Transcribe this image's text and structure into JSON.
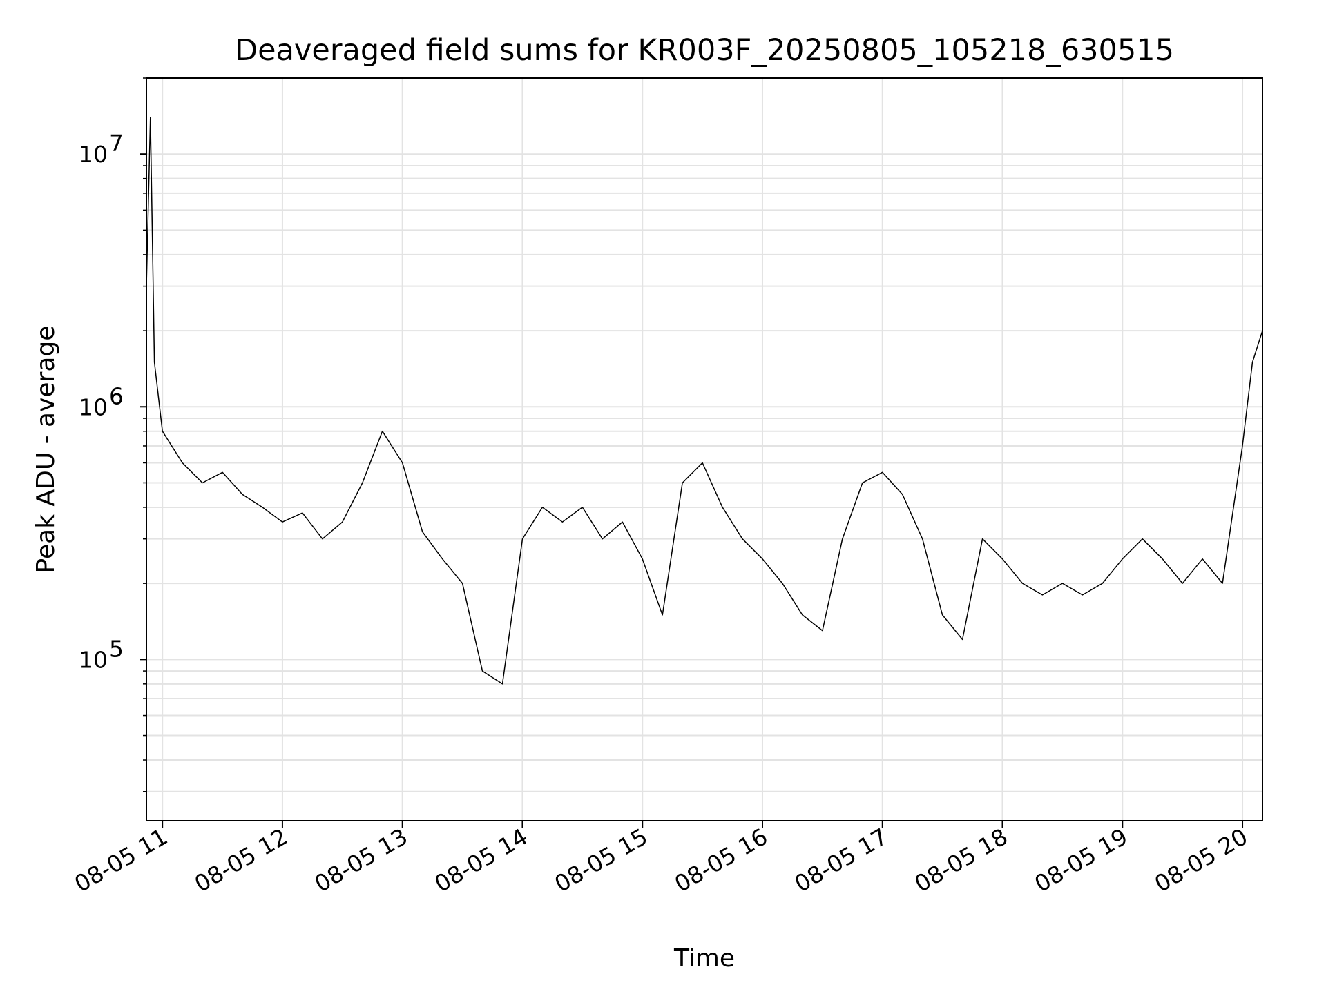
{
  "chart_data": {
    "type": "line",
    "title": "Deaveraged field sums for KR003F_20250805_105218_630515",
    "xlabel": "Time",
    "ylabel": "Peak ADU - average",
    "yscale": "log",
    "ylim": [
      23000,
      20000000
    ],
    "xlim": [
      "08-05 10:52",
      "08-05 20:10"
    ],
    "grid": true,
    "x_tick_labels": [
      "08-05 11",
      "08-05 12",
      "08-05 13",
      "08-05 14",
      "08-05 15",
      "08-05 16",
      "08-05 17",
      "08-05 18",
      "08-05 19",
      "08-05 20"
    ],
    "y_tick_labels": [
      {
        "base": "10",
        "exp": "5",
        "value": 100000
      },
      {
        "base": "10",
        "exp": "6",
        "value": 1000000
      },
      {
        "base": "10",
        "exp": "7",
        "value": 10000000
      }
    ],
    "series": [
      {
        "color": "#000000",
        "points": [
          [
            "08-05 10:52",
            3000000
          ],
          [
            "08-05 10:54",
            14000000
          ],
          [
            "08-05 10:56",
            1500000
          ],
          [
            "08-05 11:00",
            800000
          ],
          [
            "08-05 11:10",
            600000
          ],
          [
            "08-05 11:20",
            500000
          ],
          [
            "08-05 11:30",
            550000
          ],
          [
            "08-05 11:40",
            450000
          ],
          [
            "08-05 11:50",
            400000
          ],
          [
            "08-05 12:00",
            350000
          ],
          [
            "08-05 12:10",
            380000
          ],
          [
            "08-05 12:20",
            300000
          ],
          [
            "08-05 12:30",
            350000
          ],
          [
            "08-05 12:40",
            500000
          ],
          [
            "08-05 12:50",
            800000
          ],
          [
            "08-05 13:00",
            600000
          ],
          [
            "08-05 13:10",
            320000
          ],
          [
            "08-05 13:20",
            250000
          ],
          [
            "08-05 13:30",
            200000
          ],
          [
            "08-05 13:40",
            90000
          ],
          [
            "08-05 13:50",
            80000
          ],
          [
            "08-05 14:00",
            300000
          ],
          [
            "08-05 14:10",
            400000
          ],
          [
            "08-05 14:20",
            350000
          ],
          [
            "08-05 14:30",
            400000
          ],
          [
            "08-05 14:40",
            300000
          ],
          [
            "08-05 14:50",
            350000
          ],
          [
            "08-05 15:00",
            250000
          ],
          [
            "08-05 15:10",
            150000
          ],
          [
            "08-05 15:20",
            500000
          ],
          [
            "08-05 15:30",
            600000
          ],
          [
            "08-05 15:40",
            400000
          ],
          [
            "08-05 15:50",
            300000
          ],
          [
            "08-05 16:00",
            250000
          ],
          [
            "08-05 16:10",
            200000
          ],
          [
            "08-05 16:20",
            150000
          ],
          [
            "08-05 16:30",
            130000
          ],
          [
            "08-05 16:40",
            300000
          ],
          [
            "08-05 16:50",
            500000
          ],
          [
            "08-05 17:00",
            550000
          ],
          [
            "08-05 17:10",
            450000
          ],
          [
            "08-05 17:20",
            300000
          ],
          [
            "08-05 17:30",
            150000
          ],
          [
            "08-05 17:40",
            120000
          ],
          [
            "08-05 17:50",
            300000
          ],
          [
            "08-05 18:00",
            250000
          ],
          [
            "08-05 18:10",
            200000
          ],
          [
            "08-05 18:20",
            180000
          ],
          [
            "08-05 18:30",
            200000
          ],
          [
            "08-05 18:40",
            180000
          ],
          [
            "08-05 18:50",
            200000
          ],
          [
            "08-05 19:00",
            250000
          ],
          [
            "08-05 19:10",
            300000
          ],
          [
            "08-05 19:20",
            250000
          ],
          [
            "08-05 19:30",
            200000
          ],
          [
            "08-05 19:40",
            250000
          ],
          [
            "08-05 19:50",
            200000
          ],
          [
            "08-05 20:00",
            700000
          ],
          [
            "08-05 20:05",
            1500000
          ],
          [
            "08-05 20:10",
            2000000
          ]
        ]
      }
    ]
  }
}
